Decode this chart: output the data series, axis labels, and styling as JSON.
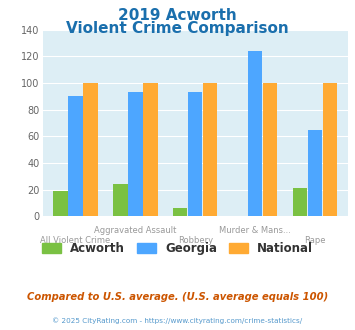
{
  "title_line1": "2019 Acworth",
  "title_line2": "Violent Crime Comparison",
  "title_color": "#1a6fad",
  "categories": [
    "All Violent Crime",
    "Aggravated Assault",
    "Robbery",
    "Murder & Mans...",
    "Rape"
  ],
  "acworth": [
    19,
    24,
    6,
    0,
    21
  ],
  "georgia": [
    90,
    93,
    93,
    124,
    65
  ],
  "national": [
    100,
    100,
    100,
    100,
    100
  ],
  "acworth_color": "#7ac143",
  "georgia_color": "#4da6ff",
  "national_color": "#ffaa33",
  "ylim": [
    0,
    140
  ],
  "yticks": [
    0,
    20,
    40,
    60,
    80,
    100,
    120,
    140
  ],
  "plot_bg": "#ddeef5",
  "footer": "© 2025 CityRating.com - https://www.cityrating.com/crime-statistics/",
  "footnote": "Compared to U.S. average. (U.S. average equals 100)",
  "footnote_color": "#cc5500",
  "footer_color": "#5599cc",
  "row1_labels": [
    "",
    "Aggravated Assault",
    "",
    "Murder & Mans...",
    ""
  ],
  "row2_labels": [
    "All Violent Crime",
    "",
    "Robbery",
    "",
    "Rape"
  ],
  "label_color": "#999999",
  "bar_width": 0.24,
  "bar_gap": 0.01
}
